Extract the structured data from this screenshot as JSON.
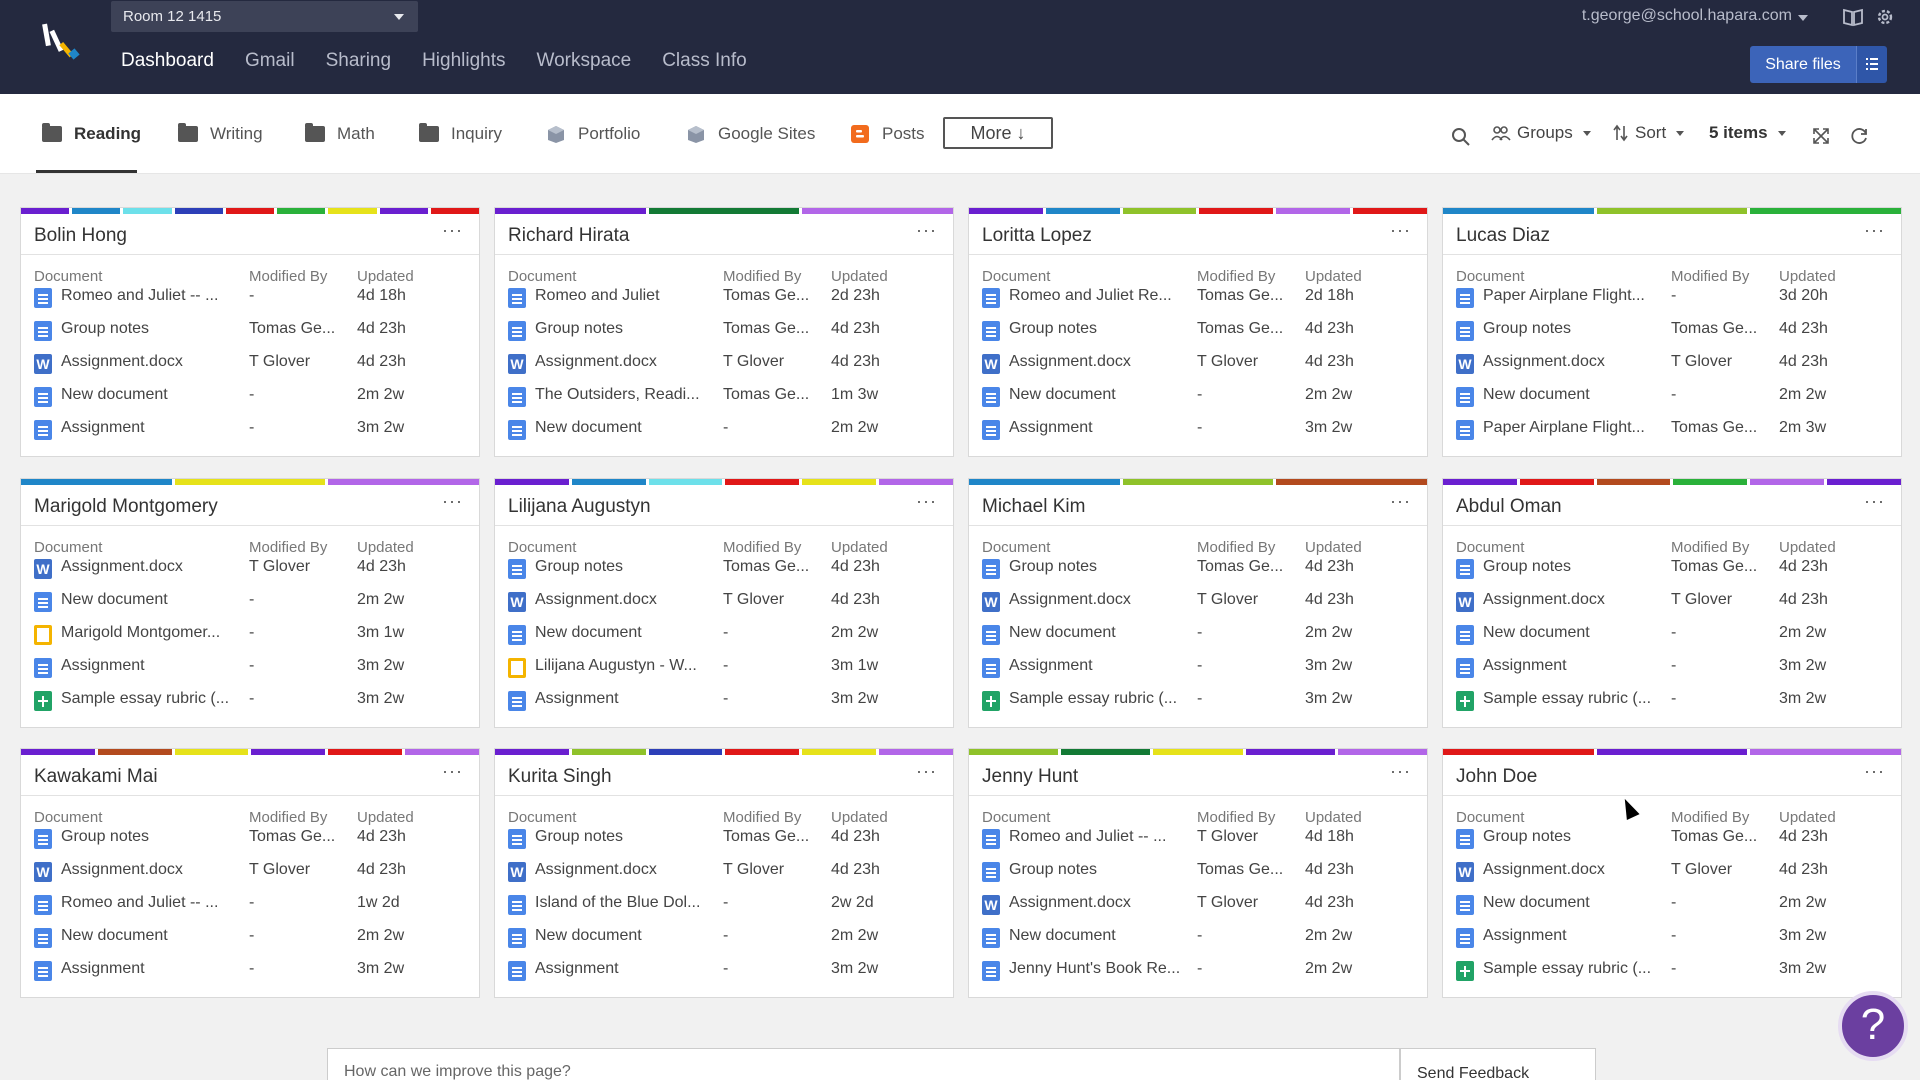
{
  "header": {
    "room_select": "Room 12 1415",
    "nav": [
      "Dashboard",
      "Gmail",
      "Sharing",
      "Highlights",
      "Workspace",
      "Class Info"
    ],
    "active_nav": "Dashboard",
    "user_email": "t.george@school.hapara.com",
    "share_label": "Share files",
    "icons": [
      "hapara-logo-icon",
      "book-icon",
      "gear-icon",
      "list-icon"
    ]
  },
  "tabs": {
    "items": [
      "Reading",
      "Writing",
      "Math",
      "Inquiry",
      "Portfolio",
      "Google Sites",
      "Posts"
    ],
    "active": "Reading",
    "more_label": "More ↓",
    "groups_label": "Groups",
    "sort_label": "Sort",
    "items_label": "5 items"
  },
  "columns": {
    "document": "Document",
    "modified_by": "Modified By",
    "updated": "Updated"
  },
  "colors": {
    "header_bg": "#24293f",
    "share_btn": "#3c64b9",
    "help_btn": "#6b3fa0",
    "palette": [
      "#6a1fd0",
      "#1f86c8",
      "#6de0ea",
      "#2d3fb8",
      "#e01818",
      "#2ab13a",
      "#e6e21a",
      "#b34a1e",
      "#8fc22a",
      "#137a35",
      "#b266e8"
    ]
  },
  "students": [
    {
      "name": "Bolin Hong",
      "bars": [
        "#6a1fd0",
        "#1f86c8",
        "#6de0ea",
        "#2d3fb8",
        "#e01818",
        "#2ab13a",
        "#e6e21a",
        "#6a1fd0",
        "#e01818"
      ],
      "docs": [
        {
          "type": "doc",
          "title": "Romeo and Juliet -- ...",
          "by": "-",
          "updated": "4d 18h"
        },
        {
          "type": "doc",
          "title": "Group notes",
          "by": "Tomas Ge...",
          "updated": "4d 23h"
        },
        {
          "type": "word",
          "title": "Assignment.docx",
          "by": "T Glover",
          "updated": "4d 23h"
        },
        {
          "type": "doc",
          "title": "New document",
          "by": "-",
          "updated": "2m 2w"
        },
        {
          "type": "doc",
          "title": "Assignment",
          "by": "-",
          "updated": "3m 2w"
        }
      ]
    },
    {
      "name": "Richard Hirata",
      "bars": [
        "#6a1fd0",
        "#137a35",
        "#b266e8"
      ],
      "docs": [
        {
          "type": "doc",
          "title": "Romeo and Juliet",
          "by": "Tomas Ge...",
          "updated": "2d 23h"
        },
        {
          "type": "doc",
          "title": "Group notes",
          "by": "Tomas Ge...",
          "updated": "4d 23h"
        },
        {
          "type": "word",
          "title": "Assignment.docx",
          "by": "T Glover",
          "updated": "4d 23h"
        },
        {
          "type": "doc",
          "title": "The Outsiders, Readi...",
          "by": "Tomas Ge...",
          "updated": "1m 3w"
        },
        {
          "type": "doc",
          "title": "New document",
          "by": "-",
          "updated": "2m 2w"
        }
      ]
    },
    {
      "name": "Loritta Lopez",
      "bars": [
        "#6a1fd0",
        "#1f86c8",
        "#8fc22a",
        "#e01818",
        "#b266e8",
        "#e01818"
      ],
      "docs": [
        {
          "type": "doc",
          "title": "Romeo and Juliet Re...",
          "by": "Tomas Ge...",
          "updated": "2d 18h"
        },
        {
          "type": "doc",
          "title": "Group notes",
          "by": "Tomas Ge...",
          "updated": "4d 23h"
        },
        {
          "type": "word",
          "title": "Assignment.docx",
          "by": "T Glover",
          "updated": "4d 23h"
        },
        {
          "type": "doc",
          "title": "New document",
          "by": "-",
          "updated": "2m 2w"
        },
        {
          "type": "doc",
          "title": "Assignment",
          "by": "-",
          "updated": "3m 2w"
        }
      ]
    },
    {
      "name": "Lucas Diaz",
      "bars": [
        "#1f86c8",
        "#8fc22a",
        "#2ab13a"
      ],
      "docs": [
        {
          "type": "doc",
          "title": "Paper Airplane Flight...",
          "by": "-",
          "updated": "3d 20h"
        },
        {
          "type": "doc",
          "title": "Group notes",
          "by": "Tomas Ge...",
          "updated": "4d 23h"
        },
        {
          "type": "word",
          "title": "Assignment.docx",
          "by": "T Glover",
          "updated": "4d 23h"
        },
        {
          "type": "doc",
          "title": "New document",
          "by": "-",
          "updated": "2m 2w"
        },
        {
          "type": "doc",
          "title": "Paper Airplane Flight...",
          "by": "Tomas Ge...",
          "updated": "2m 3w"
        }
      ]
    },
    {
      "name": "Marigold Montgomery",
      "bars": [
        "#1f86c8",
        "#e6e21a",
        "#b266e8"
      ],
      "docs": [
        {
          "type": "word",
          "title": "Assignment.docx",
          "by": "T Glover",
          "updated": "4d 23h"
        },
        {
          "type": "doc",
          "title": "New document",
          "by": "-",
          "updated": "2m 2w"
        },
        {
          "type": "slide",
          "title": "Marigold Montgomer...",
          "by": "-",
          "updated": "3m 1w"
        },
        {
          "type": "doc",
          "title": "Assignment",
          "by": "-",
          "updated": "3m 2w"
        },
        {
          "type": "sheet",
          "title": "Sample essay rubric (...",
          "by": "-",
          "updated": "3m 2w"
        }
      ]
    },
    {
      "name": "Lilijana Augustyn",
      "bars": [
        "#6a1fd0",
        "#1f86c8",
        "#6de0ea",
        "#e01818",
        "#e6e21a",
        "#b266e8"
      ],
      "docs": [
        {
          "type": "doc",
          "title": "Group notes",
          "by": "Tomas Ge...",
          "updated": "4d 23h"
        },
        {
          "type": "word",
          "title": "Assignment.docx",
          "by": "T Glover",
          "updated": "4d 23h"
        },
        {
          "type": "doc",
          "title": "New document",
          "by": "-",
          "updated": "2m 2w"
        },
        {
          "type": "slide",
          "title": "Lilijana Augustyn - W...",
          "by": "-",
          "updated": "3m 1w"
        },
        {
          "type": "doc",
          "title": "Assignment",
          "by": "-",
          "updated": "3m 2w"
        }
      ]
    },
    {
      "name": "Michael Kim",
      "bars": [
        "#1f86c8",
        "#8fc22a",
        "#b34a1e"
      ],
      "docs": [
        {
          "type": "doc",
          "title": "Group notes",
          "by": "Tomas Ge...",
          "updated": "4d 23h"
        },
        {
          "type": "word",
          "title": "Assignment.docx",
          "by": "T Glover",
          "updated": "4d 23h"
        },
        {
          "type": "doc",
          "title": "New document",
          "by": "-",
          "updated": "2m 2w"
        },
        {
          "type": "doc",
          "title": "Assignment",
          "by": "-",
          "updated": "3m 2w"
        },
        {
          "type": "sheet",
          "title": "Sample essay rubric (...",
          "by": "-",
          "updated": "3m 2w"
        }
      ]
    },
    {
      "name": "Abdul Oman",
      "bars": [
        "#6a1fd0",
        "#e01818",
        "#b34a1e",
        "#2ab13a",
        "#b266e8",
        "#6a1fd0"
      ],
      "docs": [
        {
          "type": "doc",
          "title": "Group notes",
          "by": "Tomas Ge...",
          "updated": "4d 23h"
        },
        {
          "type": "word",
          "title": "Assignment.docx",
          "by": "T Glover",
          "updated": "4d 23h"
        },
        {
          "type": "doc",
          "title": "New document",
          "by": "-",
          "updated": "2m 2w"
        },
        {
          "type": "doc",
          "title": "Assignment",
          "by": "-",
          "updated": "3m 2w"
        },
        {
          "type": "sheet",
          "title": "Sample essay rubric (...",
          "by": "-",
          "updated": "3m 2w"
        }
      ]
    },
    {
      "name": "Kawakami Mai",
      "bars": [
        "#6a1fd0",
        "#b34a1e",
        "#e6e21a",
        "#6a1fd0",
        "#e01818",
        "#b266e8"
      ],
      "docs": [
        {
          "type": "doc",
          "title": "Group notes",
          "by": "Tomas Ge...",
          "updated": "4d 23h"
        },
        {
          "type": "word",
          "title": "Assignment.docx",
          "by": "T Glover",
          "updated": "4d 23h"
        },
        {
          "type": "doc",
          "title": "Romeo and Juliet -- ...",
          "by": "-",
          "updated": "1w 2d"
        },
        {
          "type": "doc",
          "title": "New document",
          "by": "-",
          "updated": "2m 2w"
        },
        {
          "type": "doc",
          "title": "Assignment",
          "by": "-",
          "updated": "3m 2w"
        }
      ]
    },
    {
      "name": "Kurita Singh",
      "bars": [
        "#6a1fd0",
        "#8fc22a",
        "#2d3fb8",
        "#e01818",
        "#e6e21a",
        "#b266e8"
      ],
      "docs": [
        {
          "type": "doc",
          "title": "Group notes",
          "by": "Tomas Ge...",
          "updated": "4d 23h"
        },
        {
          "type": "word",
          "title": "Assignment.docx",
          "by": "T Glover",
          "updated": "4d 23h"
        },
        {
          "type": "doc",
          "title": "Island of the Blue Dol...",
          "by": "-",
          "updated": "2w 2d"
        },
        {
          "type": "doc",
          "title": "New document",
          "by": "-",
          "updated": "2m 2w"
        },
        {
          "type": "doc",
          "title": "Assignment",
          "by": "-",
          "updated": "3m 2w"
        }
      ]
    },
    {
      "name": "Jenny Hunt",
      "bars": [
        "#8fc22a",
        "#137a35",
        "#e6e21a",
        "#6a1fd0",
        "#b266e8"
      ],
      "docs": [
        {
          "type": "doc",
          "title": "Romeo and Juliet -- ...",
          "by": "T Glover",
          "updated": "4d 18h"
        },
        {
          "type": "doc",
          "title": "Group notes",
          "by": "Tomas Ge...",
          "updated": "4d 23h"
        },
        {
          "type": "word",
          "title": "Assignment.docx",
          "by": "T Glover",
          "updated": "4d 23h"
        },
        {
          "type": "doc",
          "title": "New document",
          "by": "-",
          "updated": "2m 2w"
        },
        {
          "type": "doc",
          "title": "Jenny Hunt's Book Re...",
          "by": "-",
          "updated": "2m 2w"
        }
      ]
    },
    {
      "name": "John Doe",
      "bars": [
        "#e01818",
        "#6a1fd0",
        "#b266e8"
      ],
      "docs": [
        {
          "type": "doc",
          "title": "Group notes",
          "by": "Tomas Ge...",
          "updated": "4d 23h"
        },
        {
          "type": "word",
          "title": "Assignment.docx",
          "by": "T Glover",
          "updated": "4d 23h"
        },
        {
          "type": "doc",
          "title": "New document",
          "by": "-",
          "updated": "2m 2w"
        },
        {
          "type": "doc",
          "title": "Assignment",
          "by": "-",
          "updated": "3m 2w"
        },
        {
          "type": "sheet",
          "title": "Sample essay rubric (...",
          "by": "-",
          "updated": "3m 2w"
        }
      ]
    }
  ],
  "feedback": {
    "placeholder": "How can we improve this page?",
    "button_label": "Send Feedback"
  },
  "help_label": "?"
}
